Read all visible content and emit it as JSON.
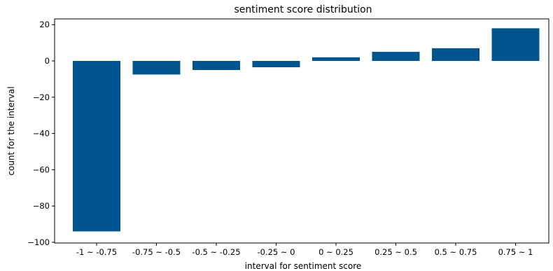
{
  "chart_data": {
    "type": "bar",
    "title": "sentiment score distribution",
    "xlabel": "interval for sentiment score",
    "ylabel": "count for the interval",
    "categories": [
      "-1 ~ -0.75",
      "-0.75 ~ -0.5",
      "-0.5 ~ -0.25",
      "-0.25 ~ 0",
      "0 ~ 0.25",
      "0.25 ~ 0.5",
      "0.5 ~ 0.75",
      "0.75 ~ 1"
    ],
    "values": [
      -94,
      -7.5,
      -5,
      -3.5,
      2,
      5,
      7,
      18
    ],
    "ylim": [
      -100,
      22
    ],
    "yticks": [
      20,
      0,
      -20,
      -40,
      -60,
      -80,
      -100
    ],
    "bar_color": "#00558f",
    "grid": false
  }
}
